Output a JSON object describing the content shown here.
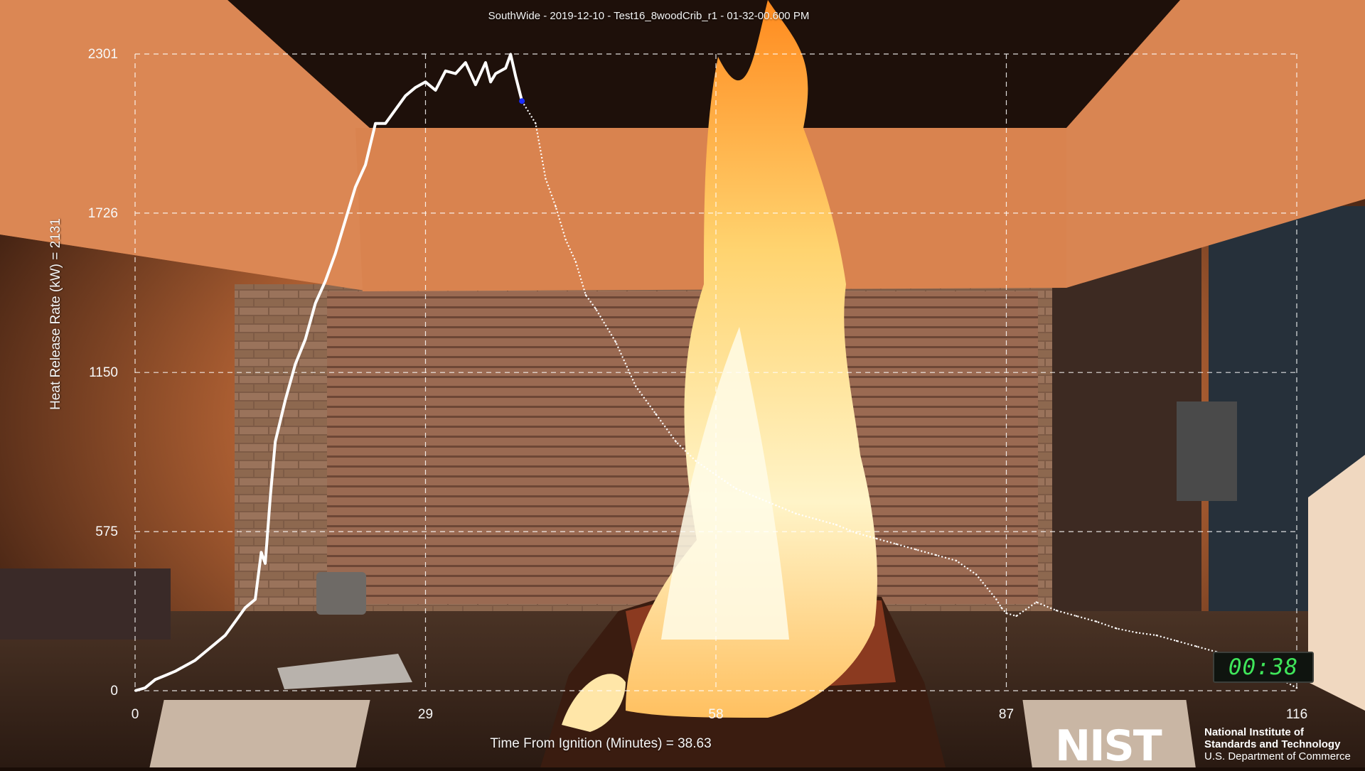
{
  "title": "SouthWide - 2019-12-10 - Test16_8woodCrib_r1 - 01-32-00.600 PM",
  "ylabel": "Heat Release Rate (kW) = 2131",
  "xlabel": "Time From Ignition (Minutes) = 38.63",
  "timer": "00:38",
  "logo": {
    "mark": "NIST",
    "line1": "National Institute of",
    "line2": "Standards and Technology",
    "line3": "U.S. Department of Commerce"
  },
  "colors": {
    "curve": "#ffffff",
    "current_marker": "#1a2cff",
    "grid": "#ffffff"
  },
  "chart_data": {
    "type": "line",
    "xlim": [
      0,
      116
    ],
    "ylim": [
      0,
      2301
    ],
    "x_ticks": [
      0,
      29,
      58,
      87,
      116
    ],
    "y_ticks": [
      0,
      575,
      1150,
      1726,
      2301
    ],
    "grid": true,
    "current": {
      "x": 38.63,
      "y": 2131
    },
    "series": [
      {
        "points": [
          [
            0,
            0
          ],
          [
            1,
            10
          ],
          [
            2,
            40
          ],
          [
            3,
            55
          ],
          [
            4,
            70
          ],
          [
            5,
            90
          ],
          [
            6,
            110
          ],
          [
            7,
            140
          ],
          [
            8,
            170
          ],
          [
            9,
            200
          ],
          [
            10,
            250
          ],
          [
            11,
            300
          ],
          [
            12,
            330
          ],
          [
            12.6,
            500
          ],
          [
            13,
            460
          ],
          [
            13.5,
            700
          ],
          [
            14,
            900
          ],
          [
            15,
            1050
          ],
          [
            16,
            1180
          ],
          [
            17,
            1270
          ],
          [
            18,
            1400
          ],
          [
            19,
            1480
          ],
          [
            20,
            1580
          ],
          [
            21,
            1700
          ],
          [
            22,
            1820
          ],
          [
            23,
            1900
          ],
          [
            24,
            2050
          ],
          [
            25,
            2050
          ],
          [
            26,
            2100
          ],
          [
            27,
            2150
          ],
          [
            28,
            2180
          ],
          [
            29,
            2200
          ],
          [
            30,
            2170
          ],
          [
            31,
            2240
          ],
          [
            32,
            2230
          ],
          [
            33,
            2270
          ],
          [
            34,
            2190
          ],
          [
            35,
            2270
          ],
          [
            35.5,
            2200
          ],
          [
            36,
            2230
          ],
          [
            37,
            2250
          ],
          [
            37.5,
            2300
          ],
          [
            38,
            2220
          ],
          [
            38.63,
            2131
          ],
          [
            40,
            2050
          ],
          [
            41,
            1850
          ],
          [
            42,
            1750
          ],
          [
            43,
            1630
          ],
          [
            44,
            1550
          ],
          [
            45,
            1430
          ],
          [
            46,
            1380
          ],
          [
            48,
            1260
          ],
          [
            50,
            1100
          ],
          [
            52,
            1000
          ],
          [
            54,
            900
          ],
          [
            56,
            830
          ],
          [
            58,
            780
          ],
          [
            60,
            730
          ],
          [
            62,
            700
          ],
          [
            64,
            670
          ],
          [
            66,
            640
          ],
          [
            68,
            620
          ],
          [
            70,
            600
          ],
          [
            72,
            570
          ],
          [
            74,
            550
          ],
          [
            76,
            530
          ],
          [
            78,
            510
          ],
          [
            80,
            490
          ],
          [
            82,
            470
          ],
          [
            84,
            420
          ],
          [
            86,
            330
          ],
          [
            86.5,
            300
          ],
          [
            87,
            280
          ],
          [
            88,
            270
          ],
          [
            90,
            320
          ],
          [
            92,
            290
          ],
          [
            94,
            270
          ],
          [
            96,
            250
          ],
          [
            98,
            225
          ],
          [
            100,
            210
          ],
          [
            102,
            200
          ],
          [
            104,
            180
          ],
          [
            106,
            160
          ],
          [
            108,
            140
          ],
          [
            110,
            110
          ],
          [
            112,
            80
          ],
          [
            114,
            50
          ],
          [
            116,
            10
          ]
        ]
      }
    ]
  }
}
